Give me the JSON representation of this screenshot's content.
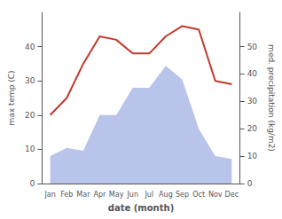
{
  "chart_data": {
    "type": "line",
    "categories": [
      "Jan",
      "Feb",
      "Mar",
      "Apr",
      "May",
      "Jun",
      "Jul",
      "Aug",
      "Sep",
      "Oct",
      "Nov",
      "Dec"
    ],
    "series": [
      {
        "type": "area",
        "color": "#b8c4ea",
        "axis": "y2",
        "values": [
          10,
          13,
          12,
          25,
          25,
          35,
          35,
          43,
          38,
          20,
          10,
          9
        ]
      },
      {
        "type": "line",
        "color": "#c0392b",
        "values": [
          20,
          25,
          35,
          43,
          42,
          38,
          38,
          43,
          46,
          45,
          30,
          29
        ]
      }
    ],
    "xlabel": "date (month)",
    "ylabel": "max temp (C)",
    "y2label": "med. precipitation (kg/m2)",
    "ylim": [
      0,
      50
    ],
    "yticks": [
      0,
      10,
      20,
      30,
      40
    ],
    "y2lim": [
      0,
      62.5
    ],
    "y2ticks": [
      0,
      10,
      20,
      30,
      40,
      50
    ],
    "grid": false
  }
}
